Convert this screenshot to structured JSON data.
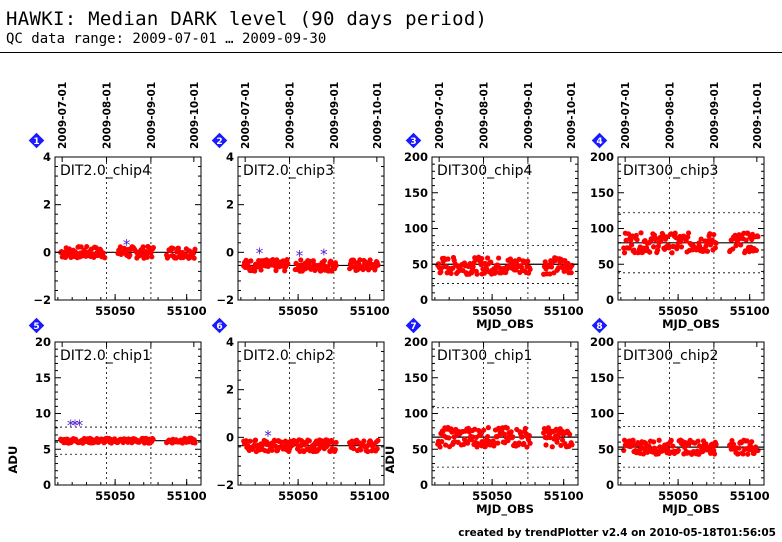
{
  "header": {
    "title": "HAWKI: Median DARK level (90 days period)",
    "subtitle": "QC data range: 2009-07-01 … 2009-09-30"
  },
  "footer": {
    "credit": "created by trendPlotter v2.4 on 2010-05-18T01:56:05"
  },
  "colors": {
    "points": "#ff0000",
    "outliers": "#5020d0",
    "badge": "#1a1aff",
    "line": "#000000"
  },
  "date_ticks": [
    "2009-07-01",
    "2009-08-01",
    "2009-09-01",
    "2009-10-01"
  ],
  "chart_data": [
    {
      "type": "scatter",
      "badge": "1",
      "title": "DIT2.0_chip4",
      "xlabel": "",
      "ylabel": "",
      "xlim": [
        55008,
        55110
      ],
      "xticks": [
        55050,
        55100
      ],
      "ylim": [
        -2,
        4
      ],
      "yticks": [
        -2,
        0,
        2,
        4
      ],
      "mean": 0.0,
      "bands": [],
      "series": [
        {
          "gap1": [
            55012,
            55043
          ],
          "gap2": [
            55052,
            55077
          ],
          "gap3": [
            55086,
            55106
          ],
          "base": 0.0,
          "spread": 0.25
        }
      ],
      "outliers": [
        {
          "x": 55058,
          "y": 0.3
        }
      ]
    },
    {
      "type": "scatter",
      "badge": "2",
      "title": "DIT2.0_chip3",
      "xlabel": "",
      "ylabel": "",
      "xlim": [
        55008,
        55110
      ],
      "xticks": [
        55050,
        55100
      ],
      "ylim": [
        -2,
        4
      ],
      "yticks": [
        -2,
        0,
        2,
        4
      ],
      "mean": -0.55,
      "bands": [],
      "series": [
        {
          "gap1": [
            55012,
            55043
          ],
          "gap2": [
            55048,
            55077
          ],
          "gap3": [
            55086,
            55106
          ],
          "base": -0.55,
          "spread": 0.25
        }
      ],
      "outliers": [
        {
          "x": 55023,
          "y": -0.05
        },
        {
          "x": 55051,
          "y": -0.15
        },
        {
          "x": 55068,
          "y": -0.1
        }
      ]
    },
    {
      "type": "scatter",
      "badge": "3",
      "title": "DIT300_chip4",
      "xlabel": "",
      "ylabel": "",
      "xlim": [
        55008,
        55110
      ],
      "xticks": [
        55050,
        55100
      ],
      "ylim": [
        0,
        200
      ],
      "yticks": [
        0,
        50,
        100,
        150,
        200
      ],
      "mean": 50,
      "bands": [
        23,
        76
      ],
      "series": [
        {
          "gap1": [
            55012,
            55043
          ],
          "gap2": [
            55043,
            55077
          ],
          "gap3": [
            55086,
            55106
          ],
          "base": 48,
          "spread": 12
        }
      ],
      "outliers": []
    },
    {
      "type": "scatter",
      "badge": "4",
      "title": "DIT300_chip3",
      "xlabel": "",
      "ylabel": "",
      "xlim": [
        55008,
        55110
      ],
      "xticks": [
        55050,
        55100
      ],
      "ylim": [
        0,
        200
      ],
      "yticks": [
        0,
        50,
        100,
        150,
        200
      ],
      "mean": 80,
      "bands": [
        38,
        122
      ],
      "series": [
        {
          "gap1": [
            55012,
            55043
          ],
          "gap2": [
            55043,
            55077
          ],
          "gap3": [
            55086,
            55106
          ],
          "base": 80,
          "spread": 14
        }
      ],
      "outliers": []
    },
    {
      "type": "scatter",
      "badge": "5",
      "title": "DIT2.0_chip1",
      "xlabel": "",
      "ylabel": "ADU",
      "xlim": [
        55008,
        55110
      ],
      "xticks": [
        55050,
        55100
      ],
      "ylim": [
        0,
        20
      ],
      "yticks": [
        0,
        5,
        10,
        15,
        20
      ],
      "mean": 6.2,
      "bands": [
        4.3,
        8.1
      ],
      "series": [
        {
          "gap1": [
            55012,
            55043
          ],
          "gap2": [
            55043,
            55077
          ],
          "gap3": [
            55086,
            55106
          ],
          "base": 6.2,
          "spread": 0.35
        }
      ],
      "outliers": [
        {
          "x": 55019,
          "y": 8.3
        },
        {
          "x": 55022,
          "y": 8.3
        },
        {
          "x": 55025,
          "y": 8.3
        }
      ]
    },
    {
      "type": "scatter",
      "badge": "6",
      "title": "DIT2.0_chip2",
      "xlabel": "",
      "ylabel": "",
      "xlim": [
        55008,
        55110
      ],
      "xticks": [
        55050,
        55100
      ],
      "ylim": [
        -2,
        4
      ],
      "yticks": [
        -2,
        0,
        2,
        4
      ],
      "mean": -0.35,
      "bands": [],
      "series": [
        {
          "gap1": [
            55012,
            55043
          ],
          "gap2": [
            55043,
            55077
          ],
          "gap3": [
            55086,
            55106
          ],
          "base": -0.35,
          "spread": 0.25
        }
      ],
      "outliers": [
        {
          "x": 55029,
          "y": 0.05
        }
      ]
    },
    {
      "type": "scatter",
      "badge": "7",
      "title": "DIT300_chip1",
      "xlabel": "",
      "ylabel": "ADU",
      "xlim": [
        55008,
        55110
      ],
      "xticks": [
        55050,
        55100
      ],
      "ylim": [
        0,
        200
      ],
      "yticks": [
        0,
        50,
        100,
        150,
        200
      ],
      "mean": 67,
      "bands": [
        25,
        108
      ],
      "series": [
        {
          "gap1": [
            55012,
            55043
          ],
          "gap2": [
            55043,
            55077
          ],
          "gap3": [
            55086,
            55106
          ],
          "base": 67,
          "spread": 14
        }
      ],
      "outliers": []
    },
    {
      "type": "scatter",
      "badge": "8",
      "title": "DIT300_chip2",
      "xlabel": "",
      "ylabel": "",
      "xlim": [
        55008,
        55110
      ],
      "xticks": [
        55050,
        55100
      ],
      "ylim": [
        0,
        200
      ],
      "yticks": [
        0,
        50,
        100,
        150,
        200
      ],
      "mean": 53,
      "bands": [
        25,
        82
      ],
      "series": [
        {
          "gap1": [
            55012,
            55043
          ],
          "gap2": [
            55043,
            55077
          ],
          "gap3": [
            55086,
            55106
          ],
          "base": 53,
          "spread": 10
        }
      ],
      "outliers": []
    }
  ],
  "xlabels": [
    "",
    "",
    "MJD_OBS",
    "MJD_OBS",
    "",
    "",
    "MJD_OBS",
    "MJD_OBS"
  ]
}
